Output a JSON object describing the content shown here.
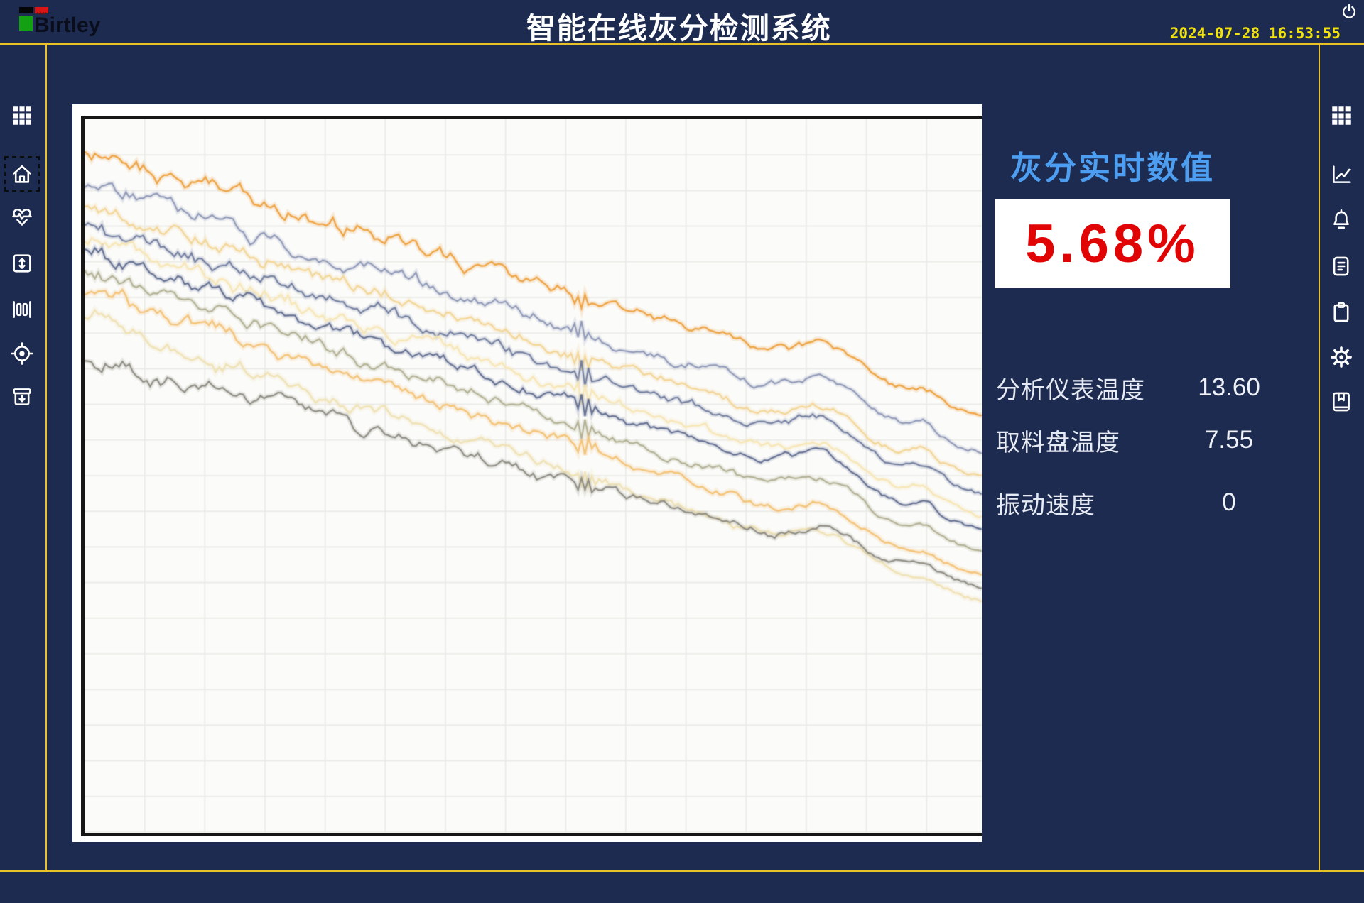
{
  "header": {
    "title": "智能在线灰分检测系统",
    "logo_text": "Birtley",
    "datetime": "2024-07-28 16:53:55",
    "power_icon": "power-icon"
  },
  "left_sidebar": {
    "items": [
      {
        "name": "menu",
        "icon": "grid-icon",
        "active": false
      },
      {
        "name": "home",
        "icon": "home-icon",
        "active": true
      },
      {
        "name": "health",
        "icon": "heart-pulse-icon",
        "active": false
      },
      {
        "name": "lift",
        "icon": "expand-vertical-icon",
        "active": false
      },
      {
        "name": "columns",
        "icon": "columns-icon",
        "active": false
      },
      {
        "name": "target",
        "icon": "target-icon",
        "active": false
      },
      {
        "name": "archive",
        "icon": "archive-down-icon",
        "active": false
      }
    ]
  },
  "right_sidebar": {
    "items": [
      {
        "name": "menu",
        "icon": "grid-icon",
        "active": false
      },
      {
        "name": "trend",
        "icon": "line-chart-icon",
        "active": false
      },
      {
        "name": "alarms",
        "icon": "bell-icon",
        "active": false
      },
      {
        "name": "records",
        "icon": "document-icon",
        "active": false
      },
      {
        "name": "report",
        "icon": "clipboard-icon",
        "active": false
      },
      {
        "name": "settings",
        "icon": "gear-icon",
        "active": false
      },
      {
        "name": "manual",
        "icon": "book-icon",
        "active": false
      }
    ]
  },
  "panel": {
    "title": "灰分实时数值",
    "value": "5.68%",
    "rows": [
      {
        "label": "分析仪表温度",
        "value": "13.60"
      },
      {
        "label": "取料盘温度",
        "value": "7.55"
      },
      {
        "label": "振动速度",
        "value": "0"
      }
    ]
  },
  "colors": {
    "background_navy": "#1d2b50",
    "accent_yellow_line": "#e8c227",
    "datetime_yellow": "#f0e20a",
    "panel_title_blue": "#4d9ef0",
    "value_red": "#e00404",
    "chart_background": "#fbfbf9",
    "chart_grid": "#e9e9e6",
    "chart_frame": "#161616"
  },
  "chart_data": {
    "type": "line",
    "title": "",
    "xlabel": "",
    "ylabel": "",
    "description": "Unlabeled spectra/trend strip chart: ~10 noisy traces drifting down from upper-left to lower-right on a white grid; a short disturbance notch at ~56% of width and an upward bump at ~83% of width. Values are fractions of plot height (0=top).",
    "grid": {
      "x_spacing": 85,
      "y_spacing": 50,
      "color": "#e9e9e6"
    },
    "events": {
      "notch": {
        "t": 0.557,
        "w": 0.012,
        "depth": 0.013
      },
      "bump": {
        "t": 0.828,
        "w": 0.045,
        "rise": 0.032
      },
      "bump2": {
        "t": 0.935,
        "w": 0.02,
        "rise": 0.012
      }
    },
    "series": [
      {
        "name": "trace-1",
        "color": "#eda13f",
        "start": 0.045,
        "end": 0.415,
        "noise": 0.014,
        "width": 2.4,
        "opacity": 0.95,
        "seed": 11,
        "event_scale": 1.0
      },
      {
        "name": "trace-2",
        "color": "#8d97b5",
        "start": 0.095,
        "end": 0.465,
        "noise": 0.013,
        "width": 2.2,
        "opacity": 0.95,
        "seed": 22,
        "event_scale": 1.15
      },
      {
        "name": "trace-3",
        "color": "#f2d491",
        "start": 0.12,
        "end": 0.5,
        "noise": 0.012,
        "width": 2.4,
        "opacity": 0.9,
        "seed": 33,
        "event_scale": 1.05
      },
      {
        "name": "trace-4",
        "color": "#6f7b9d",
        "start": 0.145,
        "end": 0.525,
        "noise": 0.012,
        "width": 2.2,
        "opacity": 0.95,
        "seed": 44,
        "event_scale": 1.25
      },
      {
        "name": "trace-5",
        "color": "#f6e6b4",
        "start": 0.17,
        "end": 0.555,
        "noise": 0.012,
        "width": 2.6,
        "opacity": 0.9,
        "seed": 55,
        "event_scale": 1.1
      },
      {
        "name": "trace-6",
        "color": "#5f6b8e",
        "start": 0.19,
        "end": 0.575,
        "noise": 0.011,
        "width": 2.2,
        "opacity": 0.95,
        "seed": 66,
        "event_scale": 1.2
      },
      {
        "name": "trace-7",
        "color": "#adac8c",
        "start": 0.215,
        "end": 0.605,
        "noise": 0.011,
        "width": 2.2,
        "opacity": 0.9,
        "seed": 77,
        "event_scale": 1.05
      },
      {
        "name": "trace-8",
        "color": "#f3c173",
        "start": 0.24,
        "end": 0.64,
        "noise": 0.011,
        "width": 2.6,
        "opacity": 0.9,
        "seed": 88,
        "event_scale": 0.95
      },
      {
        "name": "trace-9",
        "color": "#efdfae",
        "start": 0.28,
        "end": 0.675,
        "noise": 0.011,
        "width": 2.6,
        "opacity": 0.85,
        "seed": 99,
        "event_scale": 0.85
      },
      {
        "name": "trace-10",
        "color": "#8c8a7f",
        "start": 0.335,
        "end": 0.655,
        "noise": 0.013,
        "width": 2.2,
        "opacity": 0.95,
        "seed": 123,
        "event_scale": 0.9
      }
    ]
  }
}
